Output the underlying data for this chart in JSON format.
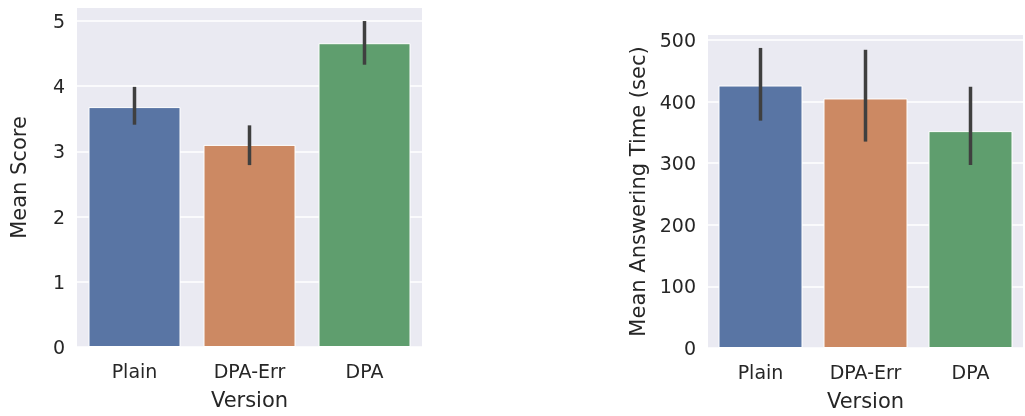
{
  "chart_data": [
    {
      "type": "bar",
      "xlabel": "Version",
      "ylabel": "Mean Score",
      "categories": [
        "Plain",
        "DPA-Err",
        "DPA"
      ],
      "values": [
        3.68,
        3.1,
        4.66
      ],
      "colors": [
        "#5975a4",
        "#cc8963",
        "#5f9e6e"
      ],
      "errors": [
        [
          3.41,
          3.99
        ],
        [
          2.79,
          3.4
        ],
        [
          4.33,
          5.0
        ]
      ],
      "ylim": [
        0,
        5.2
      ],
      "yticks": [
        0,
        1,
        2,
        3,
        4,
        5
      ],
      "grid": "y"
    },
    {
      "type": "bar",
      "xlabel": "Version",
      "ylabel": "Mean Answering Time (sec)",
      "categories": [
        "Plain",
        "DPA-Err",
        "DPA"
      ],
      "values": [
        426,
        405,
        352
      ],
      "colors": [
        "#5975a4",
        "#cc8963",
        "#5f9e6e"
      ],
      "errors": [
        [
          369,
          487
        ],
        [
          335,
          484
        ],
        [
          297,
          424
        ]
      ],
      "ylim": [
        0,
        508
      ],
      "yticks": [
        0,
        100,
        200,
        300,
        400,
        500
      ],
      "grid": "y"
    }
  ]
}
